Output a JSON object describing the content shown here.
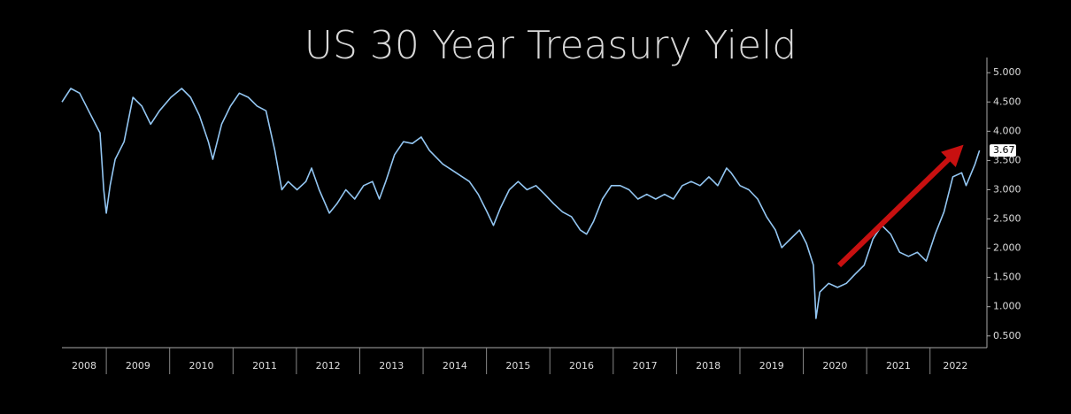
{
  "chart_data": {
    "type": "line",
    "title": "US 30 Year Treasury Yield",
    "xlim": [
      2008.3,
      2022.8
    ],
    "xticks": [
      2008,
      2009,
      2010,
      2011,
      2012,
      2013,
      2014,
      2015,
      2016,
      2017,
      2018,
      2019,
      2020,
      2021,
      2022
    ],
    "ylim": [
      0.3,
      5.26
    ],
    "yticks": [
      {
        "value": 0.5,
        "label": "0.500"
      },
      {
        "value": 1,
        "label": "1.000"
      },
      {
        "value": 1.5,
        "label": "1.500"
      },
      {
        "value": 2,
        "label": "2.000"
      },
      {
        "value": 2.5,
        "label": "2.500"
      },
      {
        "value": 3,
        "label": "3.000"
      },
      {
        "value": 3.5,
        "label": "3.500"
      },
      {
        "value": 4,
        "label": "4.000"
      },
      {
        "value": 4.5,
        "label": "4.500"
      },
      {
        "value": 5,
        "label": "5.000"
      }
    ],
    "current_value": 3.67,
    "series": [
      {
        "color": "#93c6f2",
        "x": [
          2008.3,
          2008.44,
          2008.58,
          2008.72,
          2008.83,
          2008.9,
          2008.96,
          2009.0,
          2009.06,
          2009.14,
          2009.28,
          2009.42,
          2009.56,
          2009.7,
          2009.84,
          2010.02,
          2010.19,
          2010.33,
          2010.47,
          2010.61,
          2010.68,
          2010.82,
          2010.96,
          2011.1,
          2011.24,
          2011.38,
          2011.52,
          2011.66,
          2011.77,
          2011.87,
          2012.01,
          2012.15,
          2012.24,
          2012.36,
          2012.52,
          2012.64,
          2012.78,
          2012.92,
          2013.06,
          2013.2,
          2013.31,
          2013.41,
          2013.55,
          2013.69,
          2013.83,
          2013.97,
          2014.1,
          2014.31,
          2014.52,
          2014.73,
          2014.87,
          2015.01,
          2015.11,
          2015.22,
          2015.36,
          2015.5,
          2015.64,
          2015.78,
          2015.92,
          2016.06,
          2016.2,
          2016.34,
          2016.48,
          2016.58,
          2016.69,
          2016.83,
          2016.97,
          2017.11,
          2017.25,
          2017.39,
          2017.53,
          2017.67,
          2017.81,
          2017.95,
          2018.09,
          2018.23,
          2018.37,
          2018.51,
          2018.65,
          2018.79,
          2018.86,
          2019.0,
          2019.14,
          2019.28,
          2019.42,
          2019.56,
          2019.66,
          2019.8,
          2019.94,
          2020.05,
          2020.16,
          2020.2,
          2020.26,
          2020.4,
          2020.54,
          2020.68,
          2020.82,
          2020.96,
          2021.1,
          2021.24,
          2021.38,
          2021.52,
          2021.66,
          2021.8,
          2021.94,
          2022.08,
          2022.22,
          2022.36,
          2022.5,
          2022.57,
          2022.71,
          2022.78
        ],
        "values": [
          4.5,
          4.73,
          4.65,
          4.35,
          4.12,
          3.97,
          3.0,
          2.6,
          3.07,
          3.52,
          3.82,
          4.58,
          4.43,
          4.12,
          4.35,
          4.58,
          4.73,
          4.58,
          4.27,
          3.82,
          3.52,
          4.12,
          4.43,
          4.65,
          4.58,
          4.43,
          4.35,
          3.67,
          3.0,
          3.14,
          3.0,
          3.14,
          3.37,
          3.0,
          2.6,
          2.76,
          3.0,
          2.84,
          3.07,
          3.14,
          2.84,
          3.14,
          3.6,
          3.82,
          3.79,
          3.9,
          3.67,
          3.44,
          3.29,
          3.14,
          2.92,
          2.62,
          2.39,
          2.69,
          3.0,
          3.14,
          3.0,
          3.07,
          2.92,
          2.76,
          2.62,
          2.54,
          2.31,
          2.24,
          2.46,
          2.84,
          3.07,
          3.07,
          3.0,
          2.84,
          2.92,
          2.84,
          2.92,
          2.84,
          3.07,
          3.14,
          3.07,
          3.22,
          3.07,
          3.37,
          3.29,
          3.07,
          3.0,
          2.84,
          2.54,
          2.31,
          2.01,
          2.16,
          2.31,
          2.08,
          1.71,
          0.8,
          1.25,
          1.4,
          1.33,
          1.4,
          1.56,
          1.71,
          2.16,
          2.39,
          2.24,
          1.93,
          1.86,
          1.93,
          1.78,
          2.24,
          2.62,
          3.22,
          3.29,
          3.07,
          3.44,
          3.67
        ]
      }
    ]
  }
}
